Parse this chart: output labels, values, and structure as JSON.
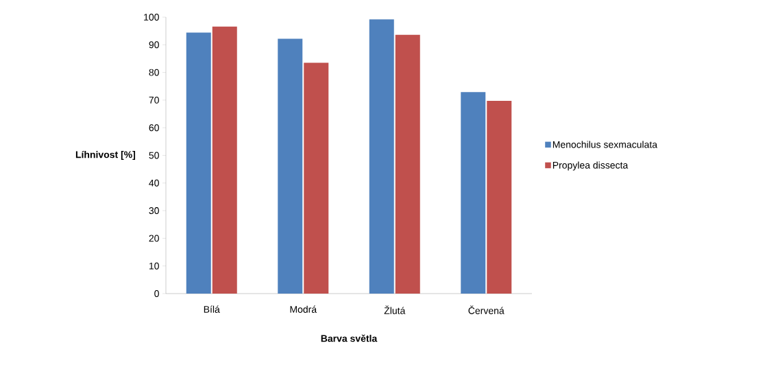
{
  "chart_data": {
    "type": "bar",
    "xlabel": "Barva světla",
    "ylabel": "Líhnivost [%]",
    "categories": [
      "Bílá",
      "Modrá",
      "Žlutá",
      "Červená"
    ],
    "series": [
      {
        "name": "Menochilus sexmaculata",
        "color": "#4f81bd",
        "values": [
          94.4,
          92.2,
          99.2,
          72.9
        ]
      },
      {
        "name": "Propylea dissecta",
        "color": "#c0504d",
        "values": [
          96.6,
          83.5,
          93.6,
          69.7
        ]
      }
    ],
    "ylim": [
      0,
      100
    ],
    "yticks": [
      0,
      10,
      20,
      30,
      40,
      50,
      60,
      70,
      80,
      90,
      100
    ],
    "grid": false,
    "legend": "right"
  }
}
